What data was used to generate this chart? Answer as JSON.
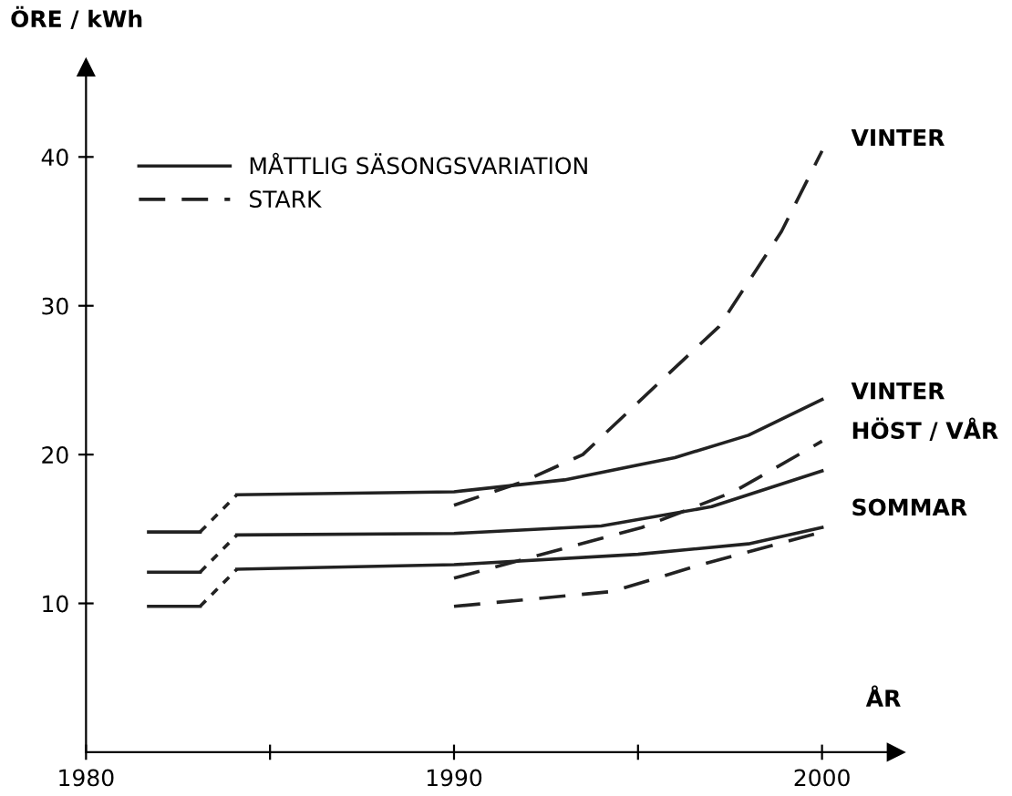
{
  "chart_data": {
    "type": "line",
    "xlabel": "ÅR",
    "ylabel": "ÖRE / kWh",
    "xlim": [
      1980,
      2002
    ],
    "ylim": [
      0,
      46
    ],
    "xticks": [
      1980,
      {
        "value": 1985,
        "label": null
      },
      1990,
      {
        "value": 1995,
        "label": null
      },
      2000
    ],
    "yticks": [
      10,
      20,
      30,
      40
    ],
    "grid": false,
    "legend": "top left",
    "marker": "none",
    "series": [
      {
        "name": "MÅTTLIG SÄSONGSVARIATION",
        "color": "#222222",
        "line_style": "solid",
        "x": [
          1984.1,
          1990,
          1993,
          1996,
          1998,
          2000
        ],
        "values": [
          17.3,
          17.5,
          18.3,
          19.8,
          21.3,
          23.7
        ]
      },
      {
        "color": "#222222",
        "line_style": "solid",
        "x": [
          1984.1,
          1990,
          1994,
          1997,
          2000
        ],
        "values": [
          14.6,
          14.7,
          15.2,
          16.5,
          18.9
        ]
      },
      {
        "color": "#222222",
        "line_style": "solid",
        "x": [
          1984.1,
          1990,
          1995,
          1998,
          2000
        ],
        "values": [
          12.3,
          12.6,
          13.3,
          14.0,
          15.1
        ]
      },
      {
        "color": "#222222",
        "line_style": "solid",
        "x": [
          1981.7,
          1983.1
        ],
        "values": [
          14.8,
          14.8
        ]
      },
      {
        "color": "#222222",
        "line_style": "solid",
        "x": [
          1981.7,
          1983.1
        ],
        "values": [
          12.1,
          12.1
        ]
      },
      {
        "color": "#222222",
        "line_style": "solid",
        "x": [
          1981.7,
          1983.1
        ],
        "values": [
          9.8,
          9.8
        ]
      },
      {
        "color": "#222222",
        "line_style": "dotted",
        "x": [
          1983.1,
          1984.1
        ],
        "values": [
          14.8,
          17.3
        ]
      },
      {
        "color": "#222222",
        "line_style": "dotted",
        "x": [
          1983.1,
          1984.1
        ],
        "values": [
          12.1,
          14.6
        ]
      },
      {
        "color": "#222222",
        "line_style": "dotted",
        "x": [
          1983.1,
          1984.1
        ],
        "values": [
          9.8,
          12.3
        ]
      },
      {
        "name": "STARK",
        "color": "#222222",
        "line_style": "dashed",
        "x": [
          1990,
          1991.9,
          1993.5,
          1995.6,
          1997.2,
          1998.9,
          2000
        ],
        "values": [
          16.6,
          18.2,
          20.0,
          24.9,
          28.6,
          35.0,
          40.4
        ]
      },
      {
        "color": "#222222",
        "line_style": "dashed",
        "x": [
          1990,
          1995.1,
          1997.6,
          2000
        ],
        "values": [
          11.7,
          15.1,
          17.5,
          20.9
        ]
      },
      {
        "color": "#222222",
        "line_style": "dashed",
        "x": [
          1990,
          1994.3,
          1996.7,
          2000
        ],
        "values": [
          9.8,
          10.8,
          12.6,
          14.8
        ]
      }
    ],
    "annotations": [
      "VINTER",
      "VINTER",
      "HÖST / VÅR",
      "SOMMAR"
    ]
  }
}
